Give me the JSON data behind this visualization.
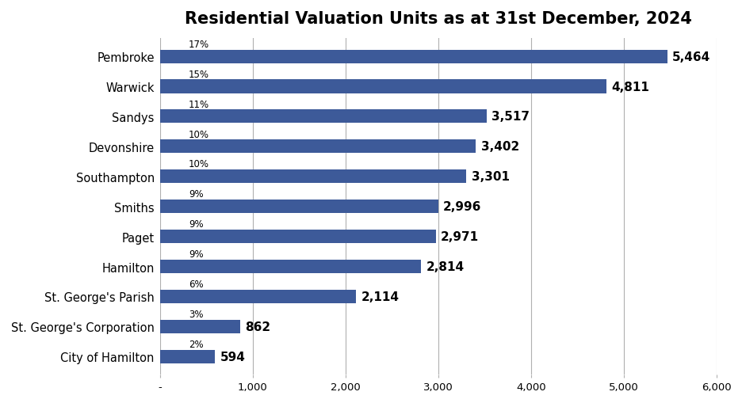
{
  "title": "Residential Valuation Units as at 31st December, 2024",
  "categories": [
    "City of Hamilton",
    "St. George's Corporation",
    "St. George's Parish",
    "Hamilton",
    "Paget",
    "Smiths",
    "Southampton",
    "Devonshire",
    "Sandys",
    "Warwick",
    "Pembroke"
  ],
  "values": [
    594,
    862,
    2114,
    2814,
    2971,
    2996,
    3301,
    3402,
    3517,
    4811,
    5464
  ],
  "percentages": [
    "2%",
    "3%",
    "6%",
    "9%",
    "9%",
    "9%",
    "10%",
    "10%",
    "11%",
    "15%",
    "17%"
  ],
  "bar_color": "#3d5a99",
  "bar_label_color": "#000000",
  "pct_label_color": "#000000",
  "background_color": "#ffffff",
  "title_fontsize": 15,
  "label_fontsize": 10.5,
  "value_fontsize": 11,
  "pct_fontsize": 8.5,
  "xlim": [
    0,
    6000
  ],
  "xticks": [
    0,
    1000,
    2000,
    3000,
    4000,
    5000,
    6000
  ],
  "xtick_labels": [
    "-",
    "1,000",
    "2,000",
    "3,000",
    "4,000",
    "5,000",
    "6,000"
  ]
}
